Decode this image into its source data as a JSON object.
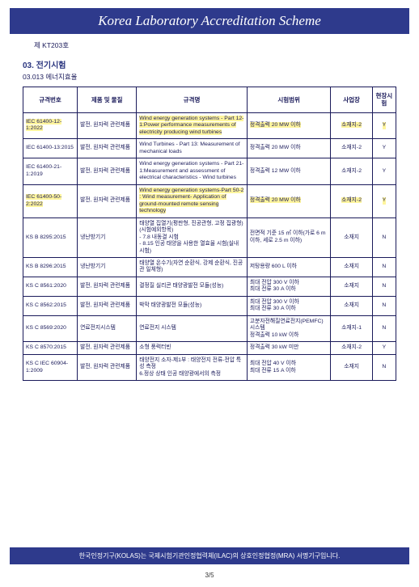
{
  "banner_title": "Korea Laboratory Accreditation Scheme",
  "doc_no": "제 KT203호",
  "section_no": "03. 전기시험",
  "subsection": "03.013 에너지효율",
  "columns": [
    "규격번호",
    "제품 및 물질",
    "규격명",
    "시험범위",
    "사업장",
    "현장시험"
  ],
  "rows": [
    {
      "std": "IEC 61400-12-1:2022",
      "prod": "발전, 원자력 관련제품",
      "name": "Wind energy generation systems - Part 12-1:Power performance measurements of electricity producing wind turbines",
      "scope": "정격출력 20 MW 이하",
      "site": "소재지-2",
      "field": "Y",
      "hl": true
    },
    {
      "std": "IEC 61400-13:2015",
      "prod": "발전, 원자력 관련제품",
      "name": "Wind Turbines - Part 13: Measurement of mechanical loads",
      "scope": "정격출력 20 MW 이하",
      "site": "소재지-2",
      "field": "Y",
      "hl": false
    },
    {
      "std": "IEC 61400-21-1:2019",
      "prod": "발전, 원자력 관련제품",
      "name": "Wind energy generation systems - Part 21-1:Measurement and assessment of electrical characteristics - Wind turbines",
      "scope": "정격출력 12 MW 이하",
      "site": "소재지-2",
      "field": "Y",
      "hl": false
    },
    {
      "std": "IEC 61400-50-2:2022",
      "prod": "발전, 원자력 관련제품",
      "name": "Wind energy generation systems-Part 50-2 : Wind measurement- Application of ground-mounted remote sensing technology",
      "scope": "정격출력 20 MW 이하",
      "site": "소재지-2",
      "field": "Y",
      "hl": true
    },
    {
      "std": "KS B 8295:2015",
      "prod": "냉난방기기",
      "name": "태양열 집열기(평판형, 진공관형, 고정 집광형)\n(시험예외항목)\n- 7.8 내동결 시험\n- 8.15 인공 태양을 사용한 열효율 시험(실내 시험)",
      "scope": "전면적 기준 15 ㎡ 이하(가로 6 m 이하, 세로 2.5 m 이하)",
      "site": "소재지",
      "field": "N",
      "hl": false
    },
    {
      "std": "KS B 8296:2015",
      "prod": "냉난방기기",
      "name": "태양열 온수기(자연 순환식, 강제 순환식, 진공관 일체형)",
      "scope": "저탕용량 600 L 이하",
      "site": "소재지",
      "field": "N",
      "hl": false
    },
    {
      "std": "KS C 8561:2020",
      "prod": "발전, 원자력 관련제품",
      "name": "결정질 실리콘 태양광발전 모듈(성능)",
      "scope": "최대 전압 300 V 이하\n최대 전류 30 A 이하",
      "site": "소재지",
      "field": "N",
      "hl": false
    },
    {
      "std": "KS C 8562:2015",
      "prod": "발전, 원자력 관련제품",
      "name": "박막 태양광발전 모듈(성능)",
      "scope": "최대 전압 300 V 이하\n최대 전류 30 A 이하",
      "site": "소재지",
      "field": "N",
      "hl": false
    },
    {
      "std": "KS C 8569:2020",
      "prod": "연료전지시스템",
      "name": "연료전지 시스템",
      "scope": "고분자전해질연료전지(PEMFC) 시스템\n정격출력 10 kW 이하",
      "site": "소재지-1",
      "field": "N",
      "hl": false
    },
    {
      "std": "KS C 8570:2015",
      "prod": "발전, 원자력 관련제품",
      "name": "소형 풍력터빈",
      "scope": "정격출력 30 kW 미만",
      "site": "소재지-2",
      "field": "Y",
      "hl": false
    },
    {
      "std": "KS C IEC 60904-1:2009",
      "prod": "발전, 원자력 관련제품",
      "name": "태양전지 소자-제1부 : 태양전지 전류-전압 특성 측정\n6.정상 상태 인공 태양광에서의 측정",
      "scope": "최대 전압 40 V 이하\n최대 전류 15 A 이하",
      "site": "소재지",
      "field": "N",
      "hl": false
    }
  ],
  "footer": "한국인정기구(KOLAS)는 국제시험기관인정협력체(ILAC)의 상호인정협정(MRA) 서명기구입니다.",
  "page": "3/5",
  "colors": {
    "banner_bg": "#2e3a8c",
    "highlight": "#fff59d",
    "text": "#1a1a5a"
  }
}
